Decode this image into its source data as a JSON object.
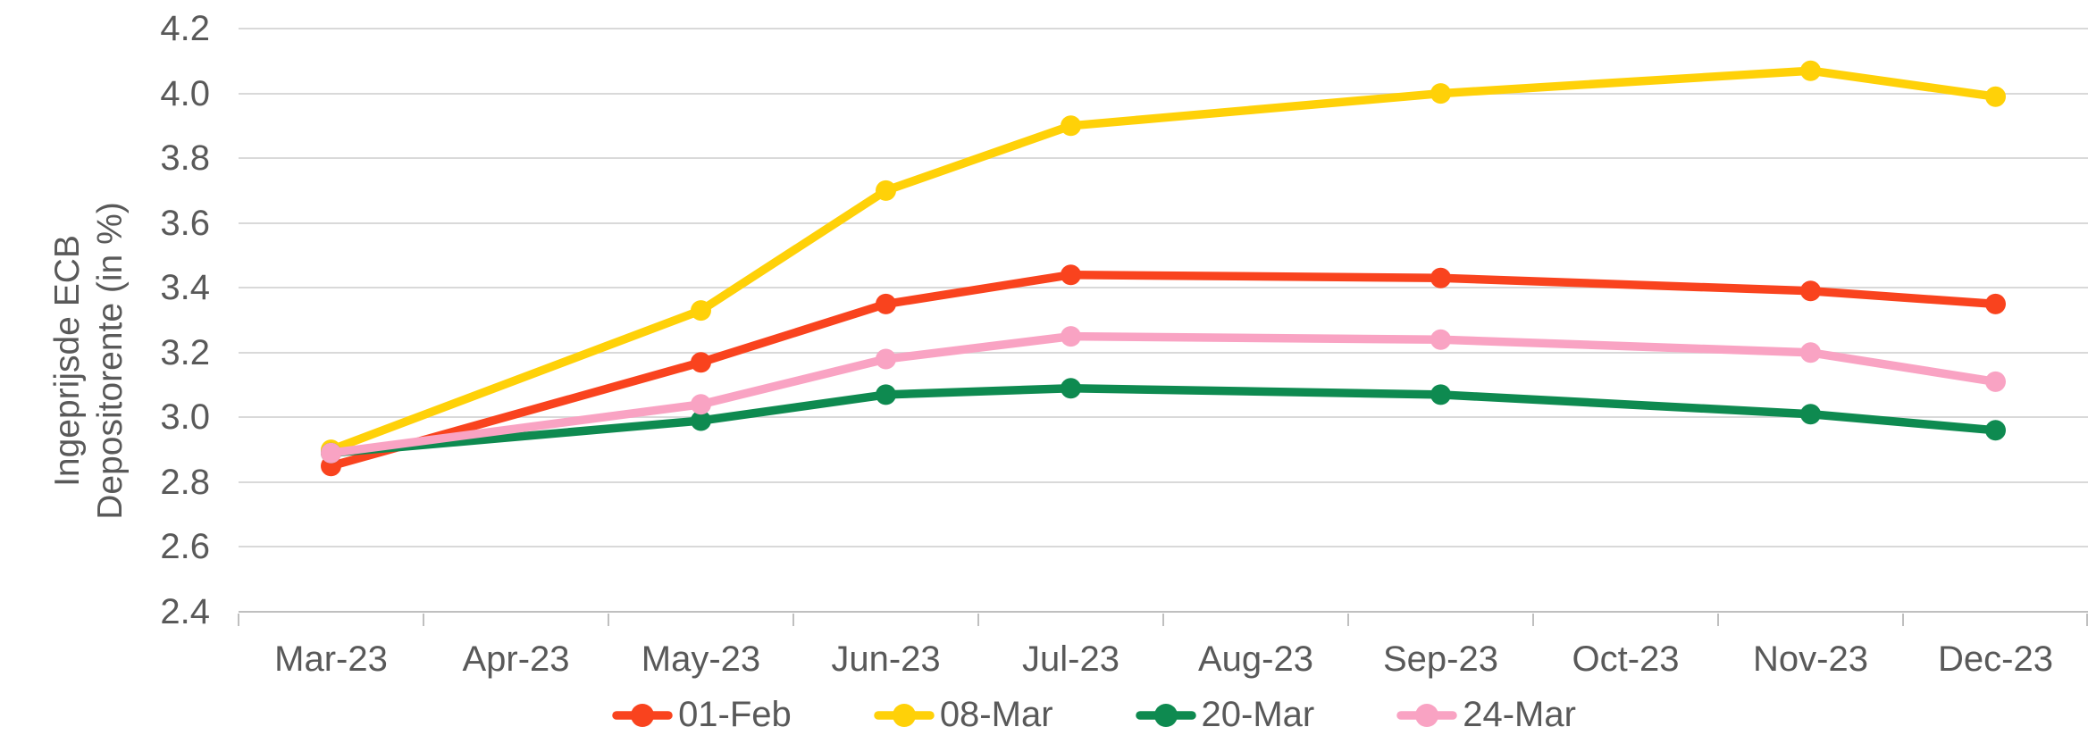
{
  "chart_data": {
    "type": "line",
    "title": "",
    "xlabel": "",
    "ylabel": "Ingeprijsde ECB Depositorente (in %)",
    "ylabel_lines": [
      "Ingeprijsde ECB",
      "Depositorente (in %)"
    ],
    "categories": [
      "Mar-23",
      "Apr-23",
      "May-23",
      "Jun-23",
      "Jul-23",
      "Aug-23",
      "Sep-23",
      "Oct-23",
      "Nov-23",
      "Dec-23"
    ],
    "y_axis": {
      "min": 2.4,
      "max": 4.2,
      "step": 0.2,
      "tick_values": [
        4.2,
        4.0,
        3.8,
        3.6,
        3.4,
        3.2,
        3.0,
        2.8,
        2.6,
        2.4
      ],
      "tick_labels": [
        "4.2",
        "4.0",
        "3.8",
        "3.6",
        "3.4",
        "3.2",
        "3.0",
        "2.8",
        "2.6",
        "2.4"
      ]
    },
    "grid": true,
    "legend_position": "bottom",
    "marker": "circle",
    "series": [
      {
        "name": "01-Feb",
        "color": "#F9431E",
        "values": [
          2.85,
          null,
          3.17,
          3.35,
          3.44,
          null,
          3.43,
          null,
          3.39,
          3.35
        ]
      },
      {
        "name": "08-Mar",
        "color": "#FFD108",
        "values": [
          2.9,
          null,
          3.33,
          3.7,
          3.9,
          null,
          4.0,
          null,
          4.07,
          3.99
        ]
      },
      {
        "name": "20-Mar",
        "color": "#0E8A50",
        "values": [
          2.89,
          null,
          2.99,
          3.07,
          3.09,
          null,
          3.07,
          null,
          3.01,
          2.96
        ]
      },
      {
        "name": "24-Mar",
        "color": "#F9A3C3",
        "values": [
          2.89,
          null,
          3.04,
          3.18,
          3.25,
          null,
          3.24,
          null,
          3.2,
          3.11
        ]
      }
    ]
  },
  "colors": {
    "background": "#FFFFFF",
    "gridline": "#D9D9D9",
    "axis": "#BFBFBF",
    "text": "#595959"
  }
}
